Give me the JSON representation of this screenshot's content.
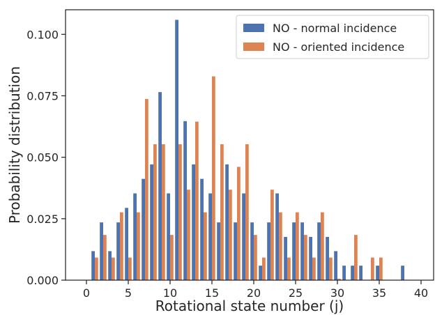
{
  "chart_data": {
    "type": "bar",
    "title": "",
    "xlabel": "Rotational state number (j)",
    "ylabel": "Probability distribution",
    "xlim": [
      -2.5,
      41.5
    ],
    "ylim": [
      0,
      0.11
    ],
    "xticks": [
      0,
      5,
      10,
      15,
      20,
      25,
      30,
      35,
      40
    ],
    "yticks": [
      0.0,
      0.025,
      0.05,
      0.075,
      0.1
    ],
    "xtick_labels": [
      "0",
      "5",
      "10",
      "15",
      "20",
      "25",
      "30",
      "35",
      "40"
    ],
    "ytick_labels": [
      "0.000",
      "0.025",
      "0.050",
      "0.075",
      "0.100"
    ],
    "grid": false,
    "legend_position": "top-right",
    "x": [
      1,
      2,
      3,
      4,
      5,
      6,
      7,
      8,
      9,
      10,
      11,
      12,
      13,
      14,
      15,
      16,
      17,
      18,
      19,
      20,
      21,
      22,
      23,
      24,
      25,
      26,
      27,
      28,
      29,
      30,
      31,
      32,
      33,
      34,
      35,
      36,
      37,
      38
    ],
    "series": [
      {
        "name": "NO - normal incidence",
        "color": "#4c72b0",
        "values": [
          0.0118,
          0.0235,
          0.0118,
          0.0235,
          0.0294,
          0.0353,
          0.0412,
          0.0471,
          0.0765,
          0.0353,
          0.1059,
          0.0647,
          0.0471,
          0.0412,
          0.0353,
          0.0235,
          0.0471,
          0.0235,
          0.0353,
          0.0235,
          0.0059,
          0.0235,
          0.0353,
          0.0176,
          0.0235,
          0.0235,
          0.0176,
          0.0235,
          0.0176,
          0.0118,
          0.0059,
          0.0059,
          0.0059,
          0,
          0.0059,
          0,
          0,
          0.0059
        ]
      },
      {
        "name": "NO - oriented incidence",
        "color": "#dd8452",
        "values": [
          0.0092,
          0.0184,
          0.0092,
          0.0276,
          0.0092,
          0.0276,
          0.0737,
          0.0553,
          0.0553,
          0.0184,
          0.0553,
          0.0368,
          0.0645,
          0.0276,
          0.0829,
          0.0553,
          0.0368,
          0.0461,
          0.0553,
          0.0184,
          0.0092,
          0.0368,
          0.0276,
          0.0092,
          0.0276,
          0.0184,
          0.0092,
          0.0276,
          0.0092,
          0.0006,
          0,
          0.0184,
          0,
          0.0092,
          0.0092,
          0,
          0,
          0
        ]
      }
    ]
  }
}
